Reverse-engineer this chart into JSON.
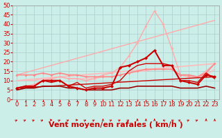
{
  "title": "",
  "xlabel": "Vent moyen/en rafales ( km/h )",
  "background_color": "#cceee8",
  "grid_color": "#aacccc",
  "xlim": [
    -0.5,
    23.5
  ],
  "ylim": [
    0,
    50
  ],
  "yticks": [
    0,
    5,
    10,
    15,
    20,
    25,
    30,
    35,
    40,
    45,
    50
  ],
  "xticks": [
    0,
    1,
    2,
    3,
    4,
    5,
    6,
    7,
    8,
    9,
    10,
    11,
    12,
    13,
    14,
    15,
    16,
    17,
    18,
    19,
    20,
    21,
    22,
    23
  ],
  "series": [
    {
      "x": [
        0,
        23
      ],
      "y": [
        13,
        42
      ],
      "color": "#ffaaaa",
      "lw": 1.0,
      "marker": null,
      "ms": 0,
      "zorder": 2
    },
    {
      "x": [
        0,
        1,
        2,
        3,
        4,
        5,
        6,
        7,
        8,
        9,
        10,
        11,
        12,
        13,
        14,
        15,
        16,
        17,
        18,
        19,
        20,
        21,
        22,
        23
      ],
      "y": [
        6,
        7,
        8,
        10,
        11,
        12,
        11,
        11,
        10,
        11,
        13,
        14,
        17,
        23,
        30,
        39,
        47,
        40,
        27,
        13,
        12,
        12,
        15,
        19
      ],
      "color": "#ffaaaa",
      "lw": 1.0,
      "marker": "D",
      "ms": 2.0,
      "zorder": 3
    },
    {
      "x": [
        0,
        1,
        2,
        3,
        4,
        5,
        6,
        7,
        8,
        9,
        10,
        11,
        12,
        13,
        14,
        15,
        16,
        17,
        18,
        19,
        20,
        21,
        22,
        23
      ],
      "y": [
        13,
        13,
        13,
        14,
        13,
        14,
        13,
        13,
        12,
        12,
        12,
        12,
        13,
        14,
        15,
        16,
        16,
        16,
        16,
        13,
        13,
        12,
        14,
        19
      ],
      "color": "#ff8888",
      "lw": 1.2,
      "marker": "D",
      "ms": 2.0,
      "zorder": 3
    },
    {
      "x": [
        0,
        23
      ],
      "y": [
        10,
        19
      ],
      "color": "#ffbbbb",
      "lw": 1.2,
      "marker": null,
      "ms": 0,
      "zorder": 2
    },
    {
      "x": [
        0,
        1,
        2,
        3,
        4,
        5,
        6,
        7,
        8,
        9,
        10,
        11,
        12,
        13,
        14,
        15,
        16,
        17,
        18,
        19,
        20,
        21,
        22,
        23
      ],
      "y": [
        10,
        10,
        10,
        11,
        11,
        12,
        11,
        11,
        11,
        11,
        12,
        12,
        13,
        14,
        15,
        15,
        16,
        16,
        16,
        13,
        12,
        12,
        13,
        16
      ],
      "color": "#ffbbbb",
      "lw": 1.0,
      "marker": null,
      "ms": 0,
      "zorder": 2
    },
    {
      "x": [
        0,
        1,
        2,
        3,
        4,
        5,
        6,
        7,
        8,
        9,
        10,
        11,
        12,
        13,
        14,
        15,
        16,
        17,
        18,
        19,
        20,
        21,
        22,
        23
      ],
      "y": [
        6,
        7,
        7,
        10,
        10,
        10,
        7,
        6,
        5,
        6,
        6,
        7,
        17,
        18,
        20,
        22,
        26,
        18,
        18,
        10,
        9,
        8,
        13,
        12
      ],
      "color": "#cc0000",
      "lw": 1.5,
      "marker": "D",
      "ms": 2.5,
      "zorder": 6
    },
    {
      "x": [
        0,
        1,
        2,
        3,
        4,
        5,
        6,
        7,
        8,
        9,
        10,
        11,
        12,
        13,
        14,
        15,
        16,
        17,
        18,
        19,
        20,
        21,
        22,
        23
      ],
      "y": [
        6,
        7,
        7,
        10,
        9,
        10,
        7,
        9,
        6,
        7,
        7,
        8,
        10,
        15,
        18,
        19,
        19,
        19,
        18,
        10,
        10,
        9,
        14,
        11
      ],
      "color": "#cc0000",
      "lw": 1.0,
      "marker": null,
      "ms": 0,
      "zorder": 5
    },
    {
      "x": [
        0,
        23
      ],
      "y": [
        6,
        12
      ],
      "color": "#cc0000",
      "lw": 1.0,
      "marker": null,
      "ms": 0,
      "zorder": 4
    },
    {
      "x": [
        0,
        1,
        2,
        3,
        4,
        5,
        6,
        7,
        8,
        9,
        10,
        11,
        12,
        13,
        14,
        15,
        16,
        17,
        18,
        19,
        20,
        21,
        22,
        23
      ],
      "y": [
        5,
        6,
        6,
        7,
        7,
        7,
        6,
        6,
        5,
        5,
        5,
        5,
        6,
        6,
        7,
        7,
        7,
        7,
        7,
        6,
        6,
        6,
        7,
        6
      ],
      "color": "#990000",
      "lw": 1.2,
      "marker": null,
      "ms": 0,
      "zorder": 5
    }
  ],
  "arrows": {
    "color": "#cc0000",
    "directions_deg": [
      45,
      45,
      45,
      45,
      90,
      45,
      45,
      90,
      45,
      45,
      0,
      45,
      45,
      45,
      0,
      0,
      0,
      315,
      315,
      45,
      45,
      45,
      0,
      0
    ]
  },
  "xlabel_color": "#cc0000",
  "xlabel_fontsize": 8,
  "tick_fontsize": 6,
  "tick_color": "#cc0000"
}
